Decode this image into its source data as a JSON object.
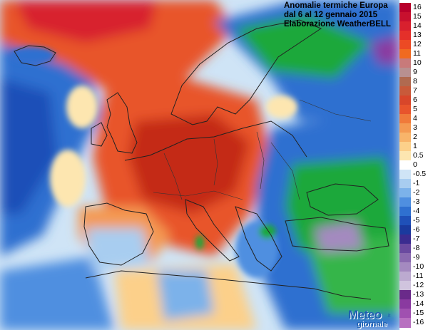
{
  "title_lines": [
    "Anomalie termiche Europa",
    "dal 6 al 12 gennaio 2015",
    "Elaborazione WeatherBELL"
  ],
  "legend": {
    "labels": [
      "16",
      "15",
      "14",
      "13",
      "12",
      "11",
      "10",
      "9",
      "8",
      "7",
      "6",
      "5",
      "4",
      "3",
      "2",
      "1",
      "0.5",
      "0",
      "-0.5",
      "-1",
      "-2",
      "-3",
      "-4",
      "-5",
      "-6",
      "-7",
      "-8",
      "-9",
      "-10",
      "-11",
      "-12",
      "-13",
      "-14",
      "-15",
      "-16"
    ],
    "colors": [
      "#b8002a",
      "#c8102e",
      "#d8202e",
      "#e4302a",
      "#ec4a24",
      "#f06a20",
      "#c87a7a",
      "#b89090",
      "#b06a50",
      "#c85a3a",
      "#d8462a",
      "#e8542c",
      "#f07a3a",
      "#f49a52",
      "#f8b46a",
      "#fcd08a",
      "#fde6b0",
      "#ffffff",
      "#cfe4f6",
      "#a8cdf0",
      "#7cb2ea",
      "#4f8fe0",
      "#2f70d0",
      "#1f50b8",
      "#1a3a9e",
      "#3a2c90",
      "#6a4aa0",
      "#8a6ab0",
      "#a48ac0",
      "#bcaad0",
      "#d0c4de",
      "#6a2a8a",
      "#8a3aa0",
      "#a050b0",
      "#b870c0"
    ]
  },
  "logo": {
    "line1": "Meteo",
    "line2": "giornale",
    "suffix": ".it"
  },
  "colors": {
    "warm_core": "#c42a14",
    "warm": "#e8542c",
    "mild": "#f49a52",
    "cold": "#2f70d0",
    "cold_deep": "#1a3a9e",
    "green_anom": "#1fa83a",
    "purple_anom": "#8a3aa0",
    "coast_line": "#222222"
  }
}
